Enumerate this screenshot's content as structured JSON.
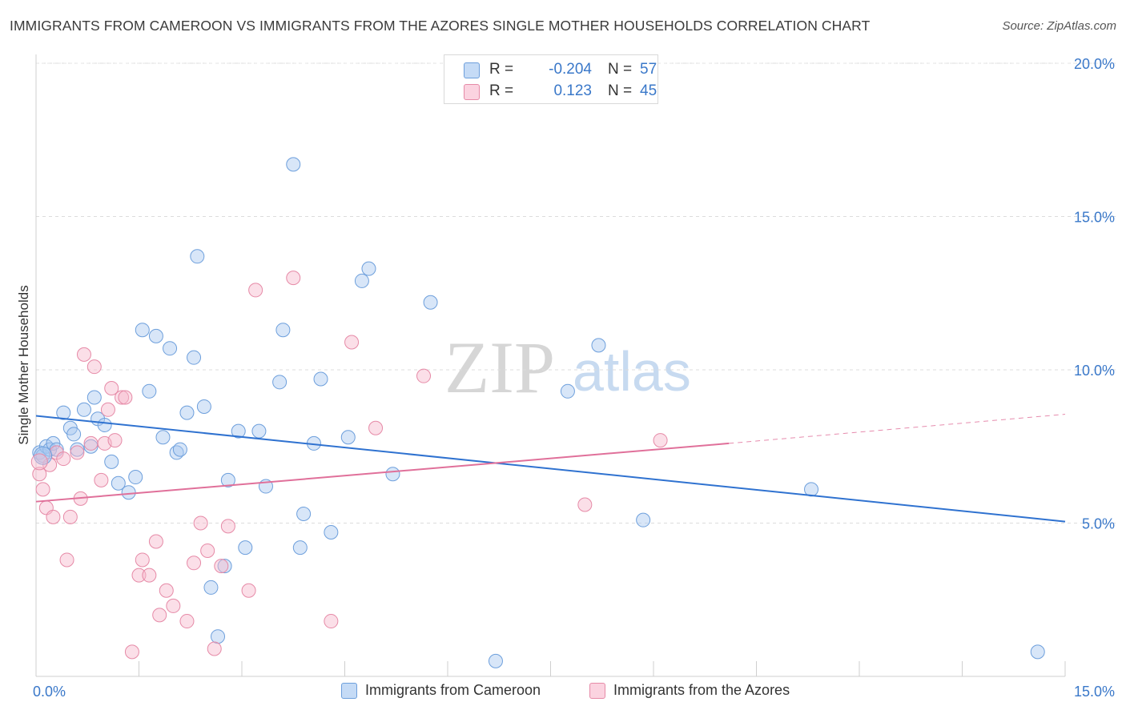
{
  "title": "IMMIGRANTS FROM CAMEROON VS IMMIGRANTS FROM THE AZORES SINGLE MOTHER HOUSEHOLDS CORRELATION CHART",
  "source": "Source: ZipAtlas.com",
  "watermark": {
    "zip": "ZIP",
    "atlas": "atlas"
  },
  "legend": {
    "rows": [
      {
        "r_label": "R =",
        "r_value": "-0.204",
        "n_label": "N =",
        "n_value": "57",
        "color": "#a9c8f0"
      },
      {
        "r_label": "R =",
        "r_value": "0.123",
        "n_label": "N =",
        "n_value": "45",
        "color": "#f7b8cb"
      }
    ]
  },
  "bottom_legend": [
    {
      "label": "Immigrants from Cameroon",
      "color": "#a9c8f0"
    },
    {
      "label": "Immigrants from the Azores",
      "color": "#f7b8cb"
    }
  ],
  "chart_data": {
    "type": "scatter",
    "title": "IMMIGRANTS FROM CAMEROON VS IMMIGRANTS FROM THE AZORES SINGLE MOTHER HOUSEHOLDS CORRELATION CHART",
    "xlabel": "",
    "ylabel": "Single Mother Households",
    "xlim": [
      0,
      15
    ],
    "ylim": [
      0,
      20
    ],
    "x_tick_labels": [
      "0.0%",
      "15.0%"
    ],
    "y_ticks": [
      5,
      10,
      15,
      20
    ],
    "y_tick_labels": [
      "5.0%",
      "10.0%",
      "15.0%",
      "20.0%"
    ],
    "grid": true,
    "legend_position": "top-center",
    "series": [
      {
        "name": "Immigrants from Cameroon",
        "color": "#a9c8f0",
        "stroke": "#6d9fdc",
        "trend_color": "#2f72d0",
        "R": -0.204,
        "N": 57,
        "trend": {
          "x": [
            0,
            15
          ],
          "y": [
            8.5,
            5.05
          ]
        },
        "points": [
          [
            0.05,
            7.3
          ],
          [
            0.1,
            7.2
          ],
          [
            0.15,
            7.5
          ],
          [
            0.2,
            7.4
          ],
          [
            0.25,
            7.6
          ],
          [
            0.3,
            7.4
          ],
          [
            0.4,
            8.6
          ],
          [
            0.5,
            8.1
          ],
          [
            0.55,
            7.9
          ],
          [
            0.6,
            7.4
          ],
          [
            0.7,
            8.7
          ],
          [
            0.8,
            7.5
          ],
          [
            0.85,
            9.1
          ],
          [
            0.9,
            8.4
          ],
          [
            1.0,
            8.2
          ],
          [
            1.1,
            7.0
          ],
          [
            1.2,
            6.3
          ],
          [
            1.35,
            6.0
          ],
          [
            1.45,
            6.5
          ],
          [
            1.55,
            11.3
          ],
          [
            1.65,
            9.3
          ],
          [
            1.75,
            11.1
          ],
          [
            1.85,
            7.8
          ],
          [
            1.95,
            10.7
          ],
          [
            2.05,
            7.3
          ],
          [
            2.1,
            7.4
          ],
          [
            2.2,
            8.6
          ],
          [
            2.3,
            10.4
          ],
          [
            2.35,
            13.7
          ],
          [
            2.45,
            8.8
          ],
          [
            2.55,
            2.9
          ],
          [
            2.65,
            1.3
          ],
          [
            2.75,
            3.6
          ],
          [
            2.8,
            6.4
          ],
          [
            2.95,
            8.0
          ],
          [
            3.05,
            4.2
          ],
          [
            3.25,
            8.0
          ],
          [
            3.35,
            6.2
          ],
          [
            3.55,
            9.6
          ],
          [
            3.6,
            11.3
          ],
          [
            3.75,
            16.7
          ],
          [
            3.85,
            4.2
          ],
          [
            3.9,
            5.3
          ],
          [
            4.05,
            7.6
          ],
          [
            4.15,
            9.7
          ],
          [
            4.3,
            4.7
          ],
          [
            4.55,
            7.8
          ],
          [
            4.75,
            12.9
          ],
          [
            4.85,
            13.3
          ],
          [
            5.2,
            6.6
          ],
          [
            5.75,
            12.2
          ],
          [
            6.7,
            0.5
          ],
          [
            7.75,
            9.3
          ],
          [
            8.2,
            10.8
          ],
          [
            8.85,
            5.1
          ],
          [
            11.3,
            6.1
          ],
          [
            14.6,
            0.8
          ]
        ]
      },
      {
        "name": "Immigrants from the Azores",
        "color": "#f7b8cb",
        "stroke": "#e68aa7",
        "trend_color": "#e0709a",
        "R": 0.123,
        "N": 45,
        "trend": {
          "x": [
            0,
            10.1
          ],
          "y": [
            5.7,
            7.6
          ]
        },
        "dashed_extension": {
          "x": [
            10.1,
            15
          ],
          "y": [
            7.6,
            8.55
          ]
        },
        "points": [
          [
            0.05,
            6.6
          ],
          [
            0.1,
            6.1
          ],
          [
            0.15,
            5.5
          ],
          [
            0.2,
            6.9
          ],
          [
            0.25,
            5.2
          ],
          [
            0.3,
            7.3
          ],
          [
            0.4,
            7.1
          ],
          [
            0.45,
            3.8
          ],
          [
            0.5,
            5.2
          ],
          [
            0.6,
            7.3
          ],
          [
            0.65,
            5.8
          ],
          [
            0.7,
            10.5
          ],
          [
            0.8,
            7.6
          ],
          [
            0.85,
            10.1
          ],
          [
            0.95,
            6.4
          ],
          [
            1.0,
            7.6
          ],
          [
            1.05,
            8.7
          ],
          [
            1.1,
            9.4
          ],
          [
            1.15,
            7.7
          ],
          [
            1.25,
            9.1
          ],
          [
            1.3,
            9.1
          ],
          [
            1.4,
            0.8
          ],
          [
            1.5,
            3.3
          ],
          [
            1.55,
            3.8
          ],
          [
            1.65,
            3.3
          ],
          [
            1.75,
            4.4
          ],
          [
            1.8,
            2.0
          ],
          [
            1.9,
            2.8
          ],
          [
            2.0,
            2.3
          ],
          [
            2.2,
            1.8
          ],
          [
            2.3,
            3.7
          ],
          [
            2.4,
            5.0
          ],
          [
            2.5,
            4.1
          ],
          [
            2.6,
            0.9
          ],
          [
            2.7,
            3.6
          ],
          [
            2.8,
            4.9
          ],
          [
            3.1,
            2.8
          ],
          [
            3.2,
            12.6
          ],
          [
            3.75,
            13.0
          ],
          [
            4.3,
            1.8
          ],
          [
            4.6,
            10.9
          ],
          [
            4.95,
            8.1
          ],
          [
            5.65,
            9.8
          ],
          [
            8.0,
            5.6
          ],
          [
            9.1,
            7.7
          ]
        ]
      }
    ]
  }
}
